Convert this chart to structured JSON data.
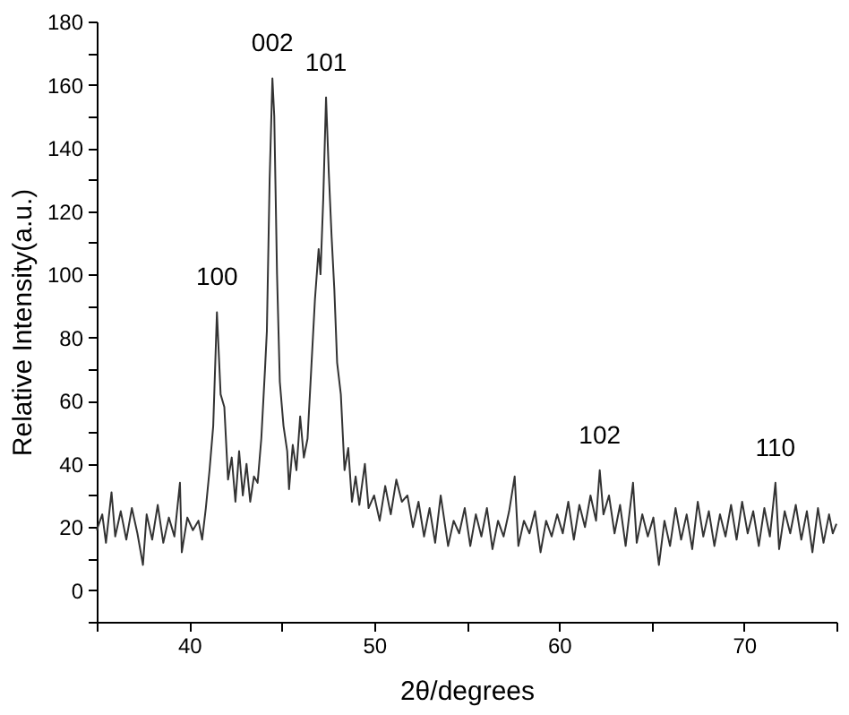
{
  "chart_data": {
    "type": "line",
    "xlabel": "2θ/degrees",
    "ylabel": "Relative Intensity(a.u.)",
    "xlim": [
      35,
      75
    ],
    "xticks": [
      {
        "value": 35,
        "label": null
      },
      40,
      {
        "value": 45,
        "label": null
      },
      50,
      {
        "value": 55,
        "label": null
      },
      60,
      {
        "value": 65,
        "label": null
      },
      70,
      {
        "value": 75,
        "label": null
      }
    ],
    "ylim": [
      -10,
      180
    ],
    "yticks": [
      {
        "value": -10,
        "label": null
      },
      0,
      {
        "value": 10,
        "label": null
      },
      20,
      {
        "value": 30,
        "label": null
      },
      40,
      {
        "value": 50,
        "label": null
      },
      60,
      {
        "value": 70,
        "label": null
      },
      80,
      {
        "value": 90,
        "label": null
      },
      100,
      {
        "value": 110,
        "label": null
      },
      120,
      {
        "value": 130,
        "label": null
      },
      140,
      {
        "value": 150,
        "label": null
      },
      160,
      {
        "value": 170,
        "label": null
      },
      180
    ],
    "x": [
      35.0,
      35.3,
      35.5,
      35.8,
      36.0,
      36.3,
      36.6,
      36.9,
      37.2,
      37.5,
      37.7,
      38.0,
      38.3,
      38.6,
      38.9,
      39.2,
      39.5,
      39.6,
      39.9,
      40.2,
      40.5,
      40.7,
      40.9,
      41.1,
      41.3,
      41.5,
      41.7,
      41.9,
      42.1,
      42.3,
      42.5,
      42.7,
      42.9,
      43.1,
      43.3,
      43.5,
      43.7,
      43.9,
      44.1,
      44.2,
      44.35,
      44.5,
      44.6,
      44.75,
      44.9,
      45.1,
      45.3,
      45.4,
      45.6,
      45.8,
      46.0,
      46.2,
      46.4,
      46.6,
      46.8,
      47.0,
      47.1,
      47.25,
      47.4,
      47.55,
      47.7,
      47.85,
      48.0,
      48.2,
      48.4,
      48.6,
      48.8,
      49.0,
      49.2,
      49.5,
      49.7,
      50.0,
      50.3,
      50.6,
      50.9,
      51.2,
      51.5,
      51.8,
      52.1,
      52.4,
      52.7,
      53.0,
      53.3,
      53.6,
      54.0,
      54.3,
      54.6,
      54.9,
      55.2,
      55.5,
      55.8,
      56.1,
      56.4,
      56.7,
      57.0,
      57.3,
      57.6,
      57.8,
      58.1,
      58.4,
      58.7,
      59.0,
      59.3,
      59.6,
      59.9,
      60.2,
      60.5,
      60.8,
      61.1,
      61.4,
      61.7,
      62.0,
      62.2,
      62.4,
      62.7,
      63.0,
      63.3,
      63.6,
      64.0,
      64.2,
      64.5,
      64.8,
      65.1,
      65.4,
      65.7,
      66.0,
      66.3,
      66.6,
      66.9,
      67.2,
      67.5,
      67.8,
      68.1,
      68.4,
      68.7,
      69.0,
      69.3,
      69.6,
      69.9,
      70.2,
      70.5,
      70.8,
      71.1,
      71.4,
      71.7,
      71.9,
      72.2,
      72.5,
      72.8,
      73.1,
      73.4,
      73.7,
      74.0,
      74.3,
      74.6,
      74.8,
      75.0
    ],
    "series": [
      {
        "color": "#333333",
        "values": [
          19,
          24,
          15,
          31,
          17,
          25,
          16,
          26,
          18,
          8,
          24,
          16,
          27,
          15,
          23,
          17,
          34,
          12,
          23,
          19,
          22,
          16,
          26,
          38,
          52,
          88,
          62,
          58,
          35,
          42,
          28,
          44,
          30,
          40,
          28,
          36,
          34,
          48,
          70,
          82,
          130,
          162,
          150,
          100,
          66,
          52,
          44,
          32,
          46,
          38,
          55,
          42,
          48,
          70,
          92,
          108,
          100,
          124,
          156,
          132,
          112,
          95,
          72,
          62,
          38,
          45,
          28,
          36,
          27,
          40,
          26,
          30,
          22,
          33,
          24,
          35,
          28,
          30,
          20,
          28,
          17,
          26,
          15,
          30,
          14,
          22,
          18,
          26,
          14,
          24,
          17,
          26,
          13,
          22,
          17,
          25,
          36,
          14,
          22,
          18,
          25,
          12,
          22,
          17,
          24,
          18,
          28,
          16,
          27,
          20,
          30,
          22,
          38,
          24,
          30,
          18,
          27,
          14,
          34,
          15,
          24,
          17,
          23,
          8,
          22,
          14,
          26,
          16,
          24,
          13,
          28,
          17,
          25,
          14,
          24,
          17,
          27,
          16,
          28,
          18,
          25,
          14,
          26,
          17,
          34,
          13,
          25,
          18,
          27,
          16,
          25,
          12,
          26,
          15,
          24,
          18,
          21
        ]
      }
    ],
    "annotations": [
      {
        "text": "100",
        "x": 41.5,
        "y": 88
      },
      {
        "text": "002",
        "x": 44.5,
        "y": 162
      },
      {
        "text": "101",
        "x": 47.4,
        "y": 156
      },
      {
        "text": "102",
        "x": 62.2,
        "y": 38
      },
      {
        "text": "110",
        "x": 71.7,
        "y": 34
      }
    ]
  }
}
